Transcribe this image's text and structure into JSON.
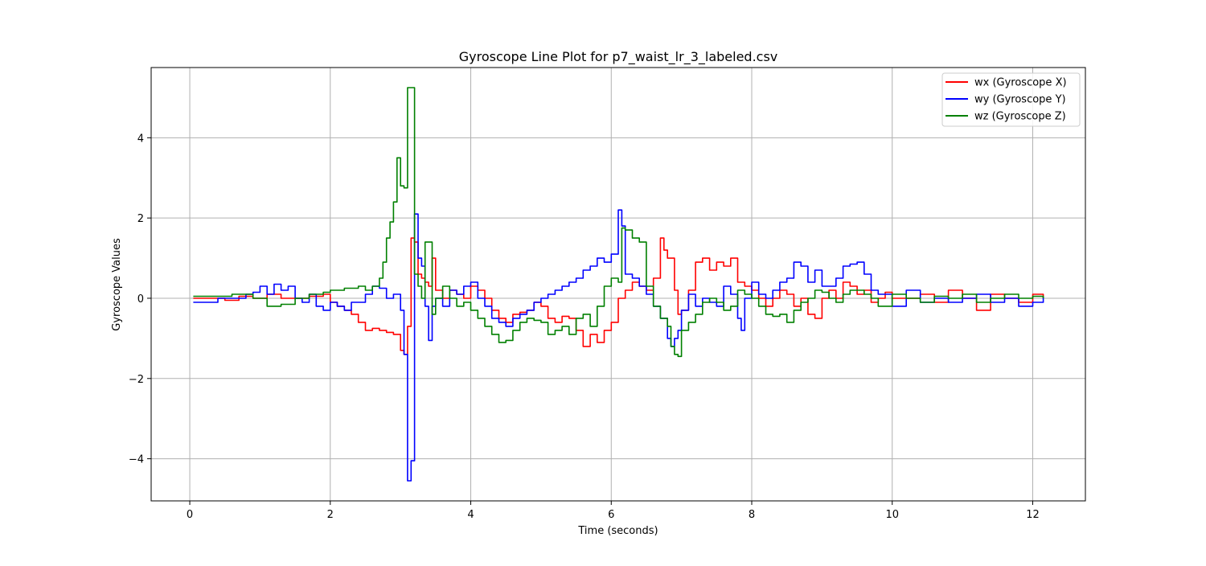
{
  "chart_data": {
    "type": "line",
    "title": "Gyroscope Line Plot for p7_waist_lr_3_labeled.csv",
    "xlabel": "Time (seconds)",
    "ylabel": "Gyroscope Values",
    "xlim": [
      -0.55,
      12.75
    ],
    "ylim": [
      -5.05,
      5.75
    ],
    "xticks": [
      0,
      2,
      4,
      6,
      8,
      10,
      12
    ],
    "yticks": [
      -4,
      -2,
      0,
      2,
      4
    ],
    "xtick_labels": [
      "0",
      "2",
      "4",
      "6",
      "8",
      "10",
      "12"
    ],
    "ytick_labels": [
      "−4",
      "−2",
      "0",
      "2",
      "4"
    ],
    "grid": true,
    "legend_position": "top-right",
    "series": [
      {
        "name": "wx (Gyroscope X)",
        "color": "#ff0000",
        "x": [
          0.05,
          0.3,
          0.5,
          0.7,
          0.9,
          1.1,
          1.3,
          1.5,
          1.7,
          1.9,
          2.0,
          2.1,
          2.2,
          2.3,
          2.4,
          2.5,
          2.6,
          2.7,
          2.8,
          2.9,
          3.0,
          3.05,
          3.1,
          3.15,
          3.2,
          3.25,
          3.3,
          3.35,
          3.4,
          3.45,
          3.5,
          3.6,
          3.7,
          3.8,
          3.9,
          4.0,
          4.1,
          4.2,
          4.3,
          4.4,
          4.5,
          4.6,
          4.7,
          4.8,
          4.9,
          5.0,
          5.1,
          5.2,
          5.3,
          5.4,
          5.5,
          5.6,
          5.7,
          5.8,
          5.9,
          6.0,
          6.1,
          6.2,
          6.3,
          6.4,
          6.5,
          6.6,
          6.7,
          6.75,
          6.8,
          6.9,
          6.95,
          7.0,
          7.1,
          7.2,
          7.3,
          7.4,
          7.5,
          7.6,
          7.7,
          7.8,
          7.9,
          8.0,
          8.1,
          8.2,
          8.3,
          8.4,
          8.5,
          8.6,
          8.7,
          8.8,
          8.9,
          9.0,
          9.1,
          9.2,
          9.3,
          9.4,
          9.5,
          9.6,
          9.7,
          9.8,
          9.9,
          10.0,
          10.2,
          10.4,
          10.6,
          10.8,
          11.0,
          11.2,
          11.4,
          11.6,
          11.8,
          12.0,
          12.15
        ],
        "y": [
          0.0,
          0.0,
          -0.05,
          0.05,
          0.0,
          0.1,
          0.0,
          0.0,
          0.05,
          0.1,
          -0.1,
          -0.2,
          -0.3,
          -0.4,
          -0.6,
          -0.8,
          -0.75,
          -0.8,
          -0.85,
          -0.9,
          -1.3,
          -1.4,
          -0.7,
          1.5,
          1.4,
          0.6,
          0.5,
          0.4,
          0.3,
          1.0,
          0.2,
          0.0,
          0.2,
          0.1,
          0.0,
          0.3,
          0.2,
          0.0,
          -0.3,
          -0.5,
          -0.6,
          -0.4,
          -0.35,
          -0.3,
          -0.1,
          -0.2,
          -0.5,
          -0.6,
          -0.45,
          -0.5,
          -0.8,
          -1.2,
          -0.9,
          -1.1,
          -0.8,
          -0.6,
          0.0,
          0.2,
          0.4,
          0.3,
          0.2,
          0.5,
          1.5,
          1.2,
          1.0,
          0.2,
          -0.4,
          -0.3,
          0.2,
          0.9,
          1.0,
          0.7,
          0.9,
          0.8,
          1.0,
          0.4,
          0.3,
          0.2,
          0.0,
          -0.2,
          0.0,
          0.2,
          0.1,
          -0.2,
          0.0,
          -0.4,
          -0.5,
          0.0,
          0.2,
          0.0,
          0.4,
          0.3,
          0.1,
          0.2,
          -0.1,
          0.0,
          0.15,
          0.0,
          0.0,
          0.1,
          -0.1,
          0.2,
          0.0,
          -0.3,
          0.1,
          0.0,
          -0.1,
          0.1,
          0.0
        ]
      },
      {
        "name": "wy (Gyroscope Y)",
        "color": "#0000ff",
        "x": [
          0.05,
          0.2,
          0.4,
          0.6,
          0.8,
          0.9,
          1.0,
          1.1,
          1.2,
          1.3,
          1.4,
          1.5,
          1.6,
          1.7,
          1.8,
          1.9,
          2.0,
          2.1,
          2.2,
          2.3,
          2.4,
          2.5,
          2.6,
          2.7,
          2.8,
          2.9,
          3.0,
          3.05,
          3.1,
          3.15,
          3.2,
          3.25,
          3.3,
          3.35,
          3.4,
          3.45,
          3.5,
          3.6,
          3.7,
          3.8,
          3.9,
          4.0,
          4.1,
          4.2,
          4.3,
          4.4,
          4.5,
          4.6,
          4.7,
          4.8,
          4.9,
          5.0,
          5.1,
          5.2,
          5.3,
          5.4,
          5.5,
          5.6,
          5.7,
          5.8,
          5.9,
          6.0,
          6.1,
          6.15,
          6.2,
          6.3,
          6.4,
          6.5,
          6.6,
          6.7,
          6.8,
          6.85,
          6.9,
          6.95,
          7.0,
          7.1,
          7.2,
          7.3,
          7.4,
          7.5,
          7.6,
          7.7,
          7.8,
          7.85,
          7.9,
          8.0,
          8.1,
          8.2,
          8.3,
          8.4,
          8.5,
          8.6,
          8.7,
          8.8,
          8.9,
          9.0,
          9.1,
          9.2,
          9.3,
          9.4,
          9.5,
          9.6,
          9.7,
          9.8,
          10.0,
          10.2,
          10.4,
          10.6,
          10.8,
          11.0,
          11.2,
          11.4,
          11.6,
          11.8,
          12.0,
          12.15
        ],
        "y": [
          -0.1,
          -0.1,
          0.0,
          0.0,
          0.1,
          0.15,
          0.3,
          0.1,
          0.35,
          0.2,
          0.3,
          0.0,
          -0.1,
          0.1,
          -0.2,
          -0.3,
          -0.1,
          -0.2,
          -0.3,
          -0.1,
          -0.1,
          0.1,
          0.3,
          0.25,
          0.0,
          0.1,
          -0.3,
          -1.4,
          -4.55,
          -4.05,
          2.1,
          1.0,
          0.8,
          -0.2,
          -1.05,
          -0.2,
          0.0,
          -0.2,
          0.2,
          0.1,
          0.3,
          0.4,
          0.0,
          -0.2,
          -0.5,
          -0.6,
          -0.7,
          -0.5,
          -0.4,
          -0.3,
          -0.1,
          0.0,
          0.1,
          0.2,
          0.3,
          0.4,
          0.5,
          0.7,
          0.8,
          1.0,
          0.9,
          1.1,
          2.2,
          1.8,
          0.6,
          0.5,
          0.3,
          0.1,
          -0.2,
          -0.5,
          -1.0,
          -1.2,
          -1.0,
          -0.8,
          -0.3,
          0.1,
          -0.2,
          0.0,
          -0.1,
          -0.2,
          0.3,
          0.1,
          -0.5,
          -0.8,
          0.0,
          0.4,
          0.1,
          0.0,
          0.2,
          0.4,
          0.5,
          0.9,
          0.8,
          0.4,
          0.7,
          0.3,
          0.3,
          0.5,
          0.8,
          0.85,
          0.9,
          0.6,
          0.2,
          0.1,
          -0.2,
          0.2,
          -0.1,
          0.0,
          -0.1,
          0.0,
          0.1,
          -0.1,
          0.0,
          -0.2,
          -0.1,
          0.05
        ]
      },
      {
        "name": "wz (Gyroscope Z)",
        "color": "#008000",
        "x": [
          0.05,
          0.3,
          0.6,
          0.9,
          1.1,
          1.3,
          1.5,
          1.7,
          1.9,
          2.0,
          2.2,
          2.4,
          2.5,
          2.6,
          2.7,
          2.75,
          2.8,
          2.85,
          2.9,
          2.95,
          3.0,
          3.05,
          3.1,
          3.15,
          3.2,
          3.25,
          3.3,
          3.35,
          3.4,
          3.45,
          3.5,
          3.6,
          3.7,
          3.8,
          3.9,
          4.0,
          4.1,
          4.2,
          4.3,
          4.4,
          4.5,
          4.6,
          4.7,
          4.8,
          4.9,
          5.0,
          5.1,
          5.2,
          5.3,
          5.4,
          5.5,
          5.6,
          5.7,
          5.8,
          5.9,
          6.0,
          6.1,
          6.15,
          6.2,
          6.3,
          6.4,
          6.5,
          6.6,
          6.7,
          6.8,
          6.85,
          6.9,
          6.95,
          7.0,
          7.1,
          7.2,
          7.3,
          7.4,
          7.5,
          7.6,
          7.7,
          7.8,
          7.9,
          8.0,
          8.1,
          8.2,
          8.3,
          8.4,
          8.5,
          8.6,
          8.7,
          8.8,
          8.9,
          9.0,
          9.1,
          9.2,
          9.3,
          9.4,
          9.5,
          9.6,
          9.7,
          9.8,
          10.0,
          10.2,
          10.4,
          10.6,
          10.8,
          11.0,
          11.2,
          11.4,
          11.6,
          11.8,
          12.0,
          12.15
        ],
        "y": [
          0.05,
          0.05,
          0.1,
          0.0,
          -0.2,
          -0.15,
          0.0,
          0.1,
          0.15,
          0.2,
          0.25,
          0.3,
          0.2,
          0.3,
          0.5,
          0.9,
          1.5,
          1.9,
          2.4,
          3.5,
          2.8,
          2.75,
          5.25,
          5.25,
          0.6,
          0.3,
          0.0,
          1.4,
          1.4,
          -0.4,
          0.0,
          0.3,
          0.0,
          -0.2,
          -0.1,
          -0.3,
          -0.5,
          -0.7,
          -0.9,
          -1.1,
          -1.05,
          -0.8,
          -0.6,
          -0.5,
          -0.55,
          -0.6,
          -0.9,
          -0.8,
          -0.7,
          -0.9,
          -0.5,
          -0.4,
          -0.7,
          -0.2,
          0.3,
          0.5,
          0.4,
          1.75,
          1.7,
          1.5,
          1.4,
          0.3,
          -0.2,
          -0.5,
          -0.7,
          -1.2,
          -1.4,
          -1.45,
          -0.8,
          -0.6,
          -0.4,
          -0.1,
          0.0,
          -0.1,
          -0.3,
          -0.2,
          0.2,
          0.1,
          0.0,
          -0.2,
          -0.4,
          -0.45,
          -0.4,
          -0.6,
          -0.3,
          -0.1,
          0.0,
          0.2,
          0.15,
          0.0,
          -0.1,
          0.1,
          0.2,
          0.2,
          0.1,
          0.0,
          -0.2,
          0.1,
          0.0,
          -0.1,
          0.05,
          0.0,
          0.1,
          -0.1,
          0.0,
          0.1,
          0.0,
          0.05,
          0.0
        ]
      }
    ]
  }
}
